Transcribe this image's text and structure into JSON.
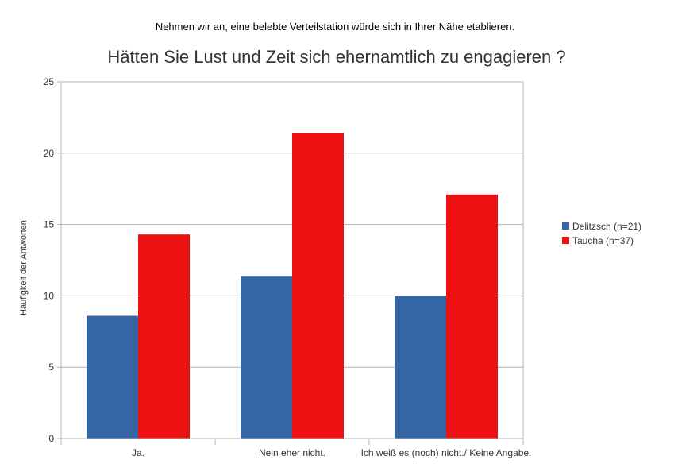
{
  "colors": {
    "background": "#ffffff",
    "grid": "#b3b3b3",
    "axis": "#b3b3b3",
    "text": "#000000",
    "tick_text": "#333333",
    "delitzsch": "#3465a4",
    "taucha": "#ee1111"
  },
  "chart_data": {
    "type": "bar",
    "subtitle": "Nehmen wir an, eine belebte Verteilstation würde sich in Ihrer Nähe etablieren.",
    "title": "Hätten Sie Lust und Zeit sich ehernamtlich zu engagieren ?",
    "xlabel": "",
    "ylabel": "Häufigkeit der Antworten",
    "ylim": [
      0,
      25
    ],
    "yticks": [
      0,
      5,
      10,
      15,
      20,
      25
    ],
    "grid": true,
    "legend_position": "right",
    "categories": [
      "Ja.",
      "Nein eher nicht.",
      "Ich weiß es (noch) nicht./ Keine Angabe."
    ],
    "series": [
      {
        "name": "Delitzsch (n=21)",
        "values": [
          8.6,
          11.4,
          10.0
        ]
      },
      {
        "name": "Taucha (n=37)",
        "values": [
          14.3,
          21.4,
          17.1
        ]
      }
    ]
  }
}
